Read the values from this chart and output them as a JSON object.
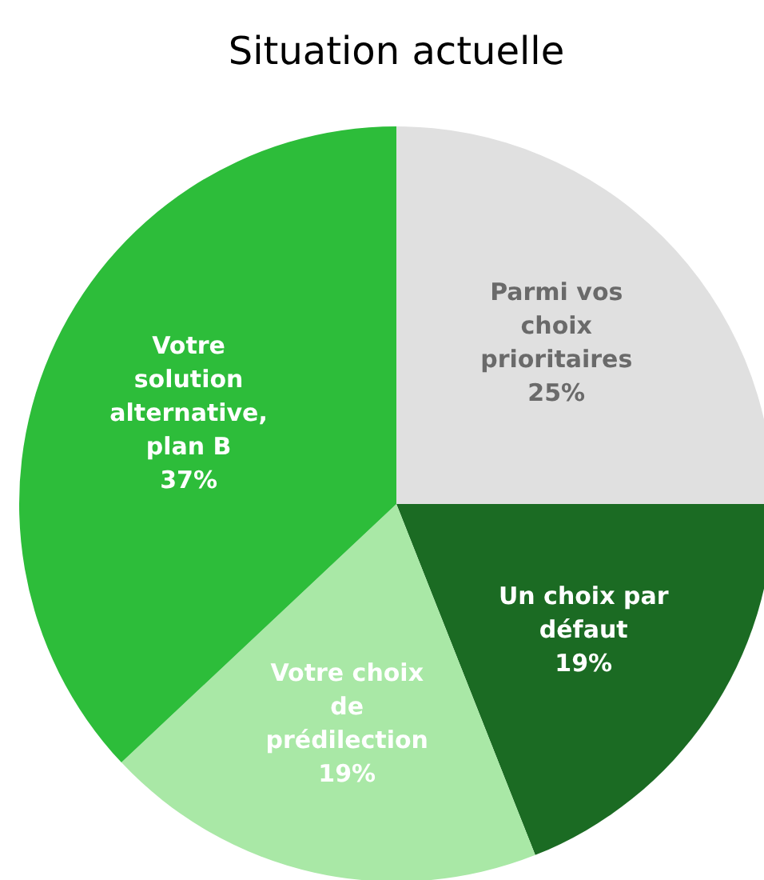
{
  "chart_data": {
    "type": "pie",
    "title": "Situation actuelle",
    "categories": [
      "Parmi vos choix prioritaires",
      "Un choix par défaut",
      "Votre choix de prédilection",
      "Votre solution alternative, plan B"
    ],
    "values": [
      25,
      19,
      19,
      37
    ],
    "colors": [
      "#e0e0e0",
      "#1b6b23",
      "#a9e8a6",
      "#2dbd3a"
    ],
    "value_labels": [
      "25%",
      "19%",
      "19%",
      "37%"
    ]
  }
}
